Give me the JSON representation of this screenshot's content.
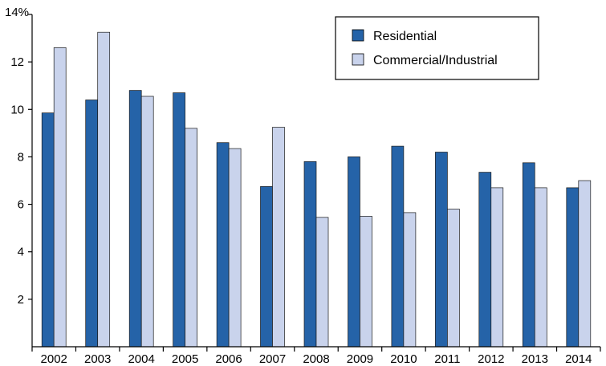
{
  "chart_data": {
    "type": "bar",
    "categories": [
      "2002",
      "2003",
      "2004",
      "2005",
      "2006",
      "2007",
      "2008",
      "2009",
      "2010",
      "2011",
      "2012",
      "2013",
      "2014"
    ],
    "series": [
      {
        "name": "Residential",
        "color": "#2563a8",
        "values": [
          9.85,
          10.4,
          10.8,
          10.7,
          8.6,
          6.75,
          7.8,
          8.0,
          8.45,
          8.2,
          7.35,
          7.75,
          6.7
        ]
      },
      {
        "name": "Commercial/Industrial",
        "color": "#c9d3ec",
        "values": [
          12.6,
          13.25,
          10.55,
          9.2,
          8.35,
          9.25,
          5.45,
          5.5,
          5.65,
          5.8,
          6.7,
          6.7,
          7.0
        ]
      }
    ],
    "yticks": [
      "2",
      "4",
      "6",
      "8",
      "10",
      "12",
      "14%"
    ],
    "ylim": [
      0,
      14
    ],
    "title": "",
    "xlabel": "",
    "ylabel": "",
    "legend_position": "top-right",
    "grid": false
  }
}
